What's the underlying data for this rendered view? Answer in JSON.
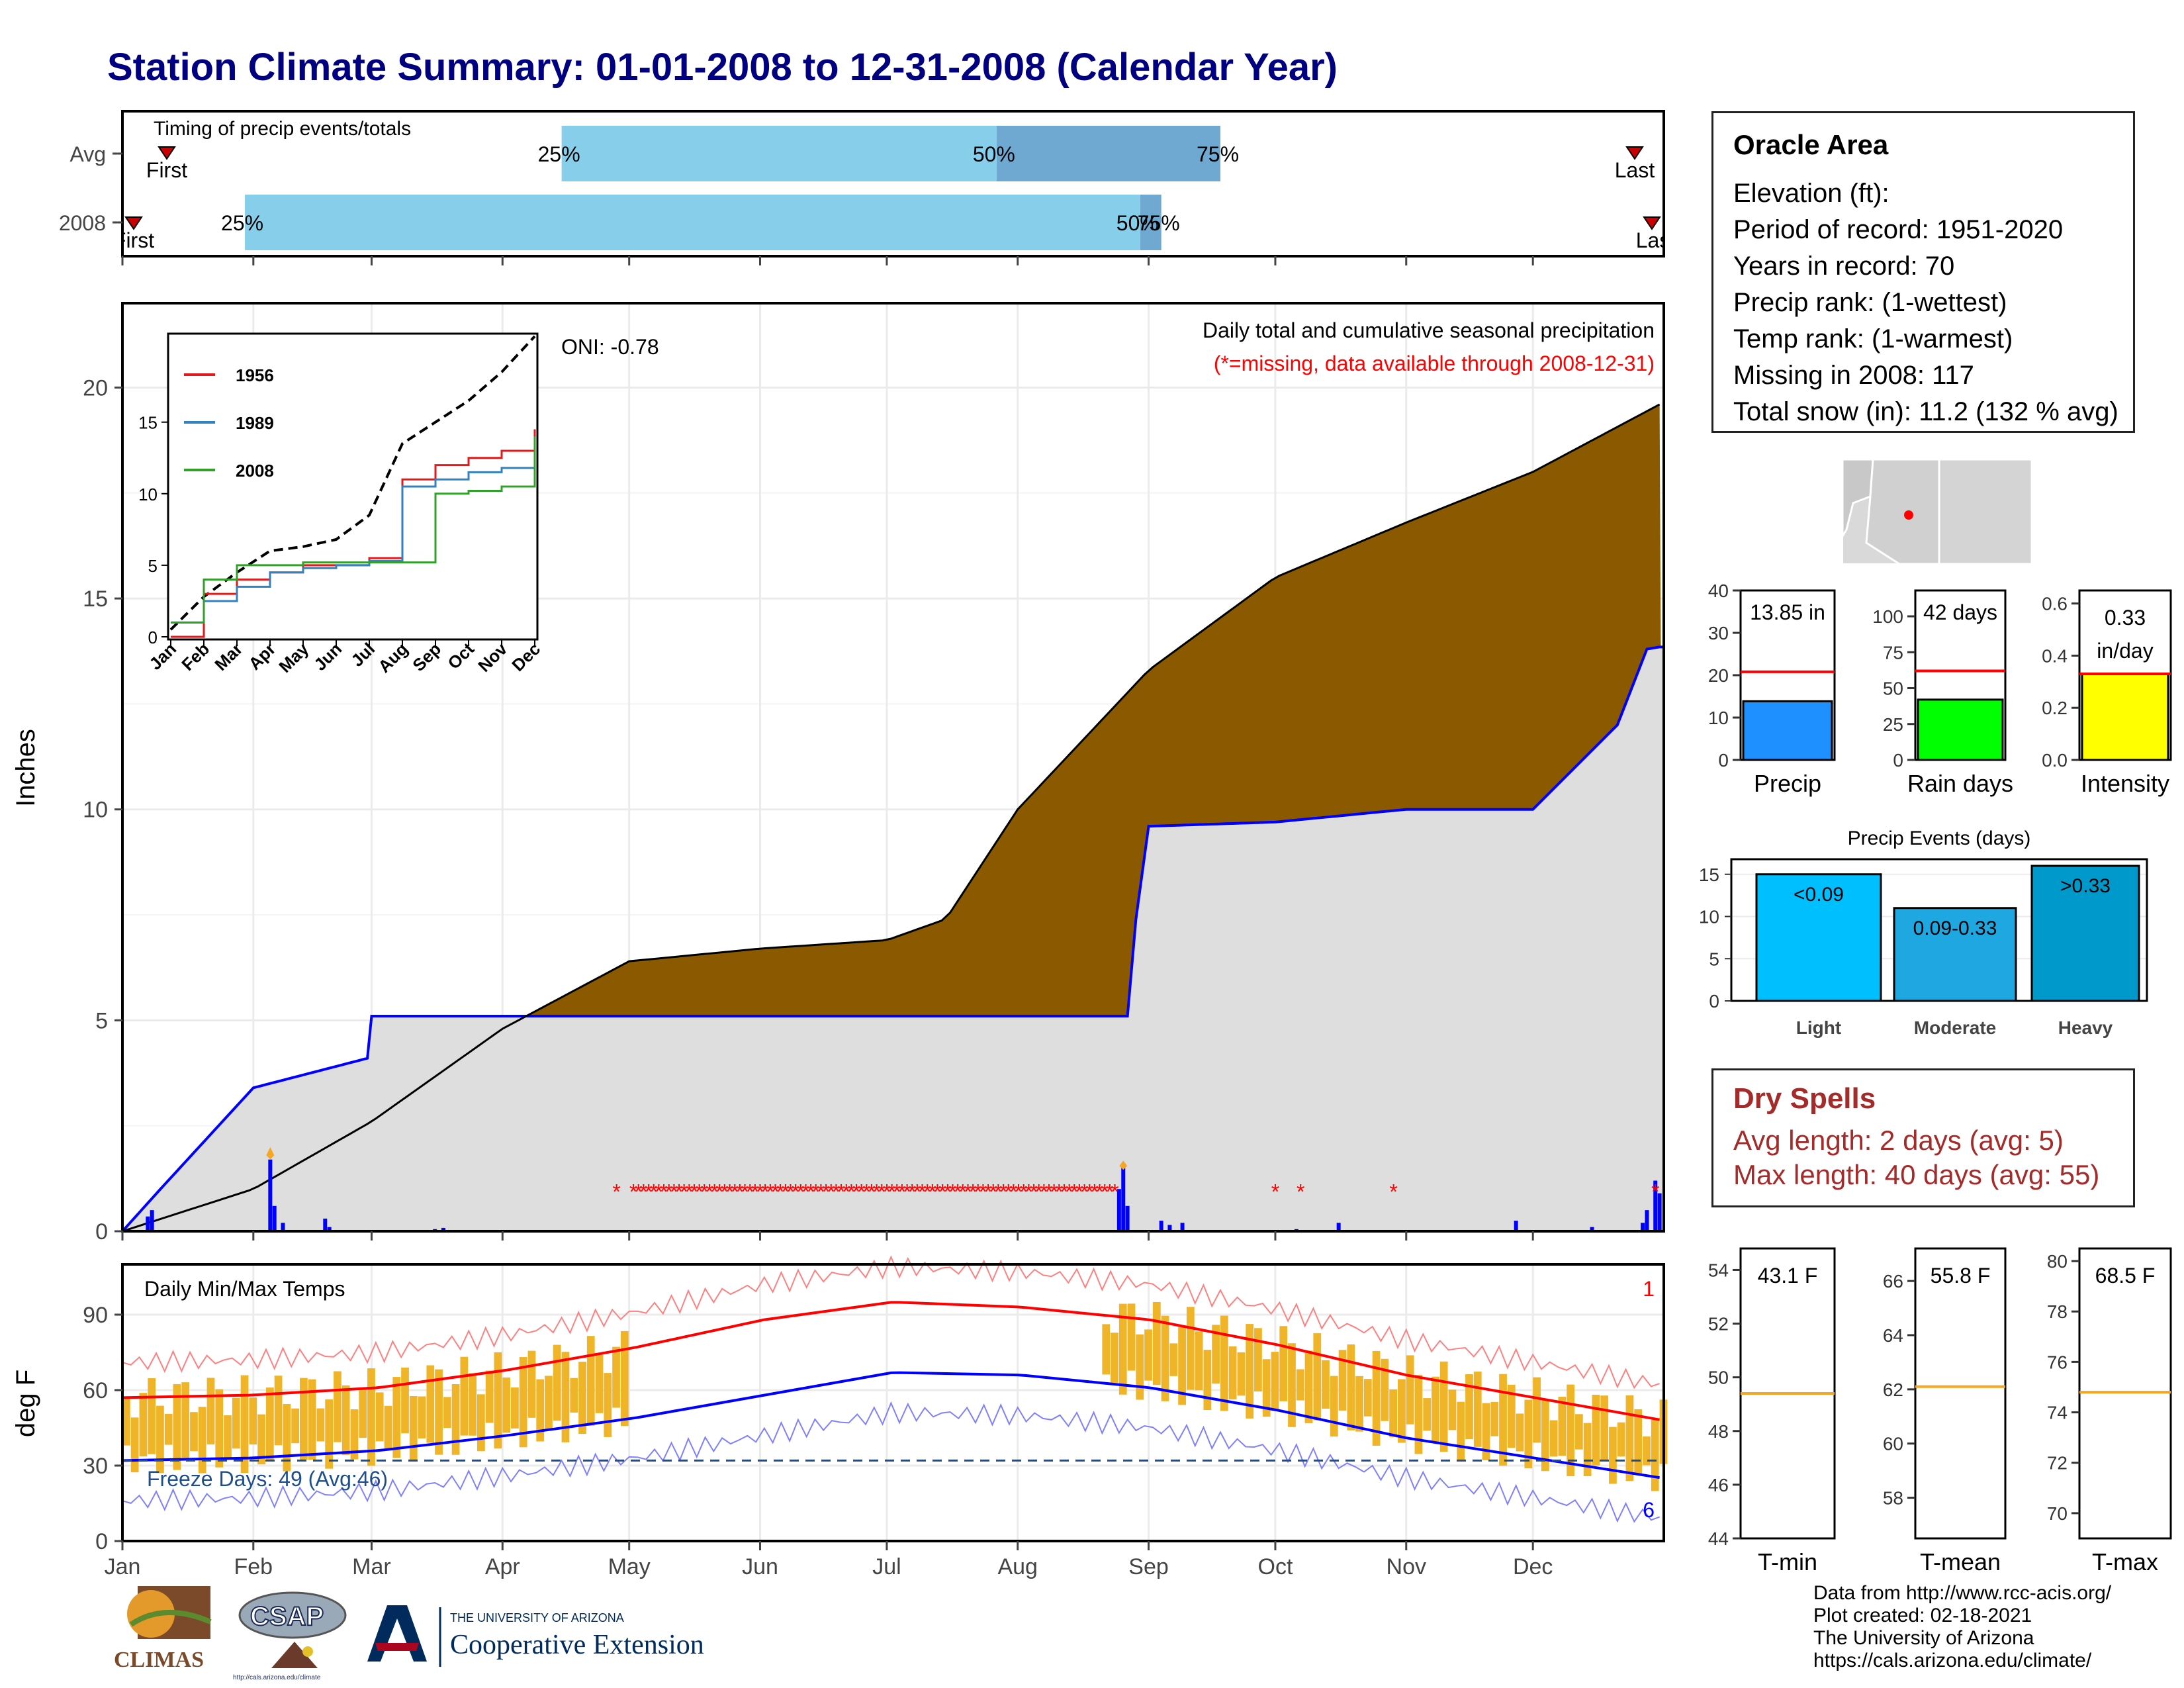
{
  "title": "Station Climate Summary: 01-01-2008 to 12-31-2008 (Calendar Year)",
  "colors": {
    "title": "#000080",
    "precip_area": "#8B5A00",
    "green_area": "#008000",
    "cumulative_line": "#0000ff",
    "missing": "#ff0000",
    "temp_bar": "#f0b429",
    "tmax_avg": "#ff0000",
    "tmin_avg": "#0000ff"
  },
  "timing": {
    "header": "Timing of precip events/totals",
    "rows": [
      {
        "label": "Avg",
        "p25": "25%",
        "p50": "50%",
        "p75": "75%",
        "first": "First",
        "last": "Last"
      },
      {
        "label": "2008",
        "p25": "25%",
        "p50": "50%",
        "p75": "75%",
        "first": "First",
        "last": "Last"
      }
    ]
  },
  "info": {
    "station": "Oracle Area",
    "lines": [
      "Elevation (ft):",
      "Period of record: 1951-2020",
      "Years in record: 70",
      "Precip rank:  (1-wettest)",
      "Temp rank:  (1-warmest)",
      "Missing in 2008: 117",
      "Total snow (in): 11.2 (132 % avg)"
    ]
  },
  "main": {
    "ylabel": "Inches",
    "oni": "ONI: -0.78",
    "legend_title": "Daily total and cumulative seasonal precipitation",
    "missing_note": "(*=missing, data available through 2008-12-31)",
    "y_ticks": [
      "0",
      "5",
      "10",
      "15",
      "20"
    ]
  },
  "inset": {
    "series": [
      "1956",
      "1989",
      "2008"
    ],
    "y_ticks": [
      "0",
      "5",
      "10",
      "15"
    ],
    "months": [
      "Jan",
      "Feb",
      "Mar",
      "Apr",
      "May",
      "Jun",
      "Jul",
      "Aug",
      "Sep",
      "Oct",
      "Nov",
      "Dec"
    ]
  },
  "temps": {
    "ylabel": "deg F",
    "header": "Daily Min/Max Temps",
    "freeze": "Freeze Days: 49 (Avg:46)",
    "count_top": "1",
    "count_bottom": "6",
    "y_ticks": [
      "0",
      "30",
      "60",
      "90"
    ]
  },
  "months": [
    "Jan",
    "Feb",
    "Mar",
    "Apr",
    "May",
    "Jun",
    "Jul",
    "Aug",
    "Sep",
    "Oct",
    "Nov",
    "Dec"
  ],
  "bars": {
    "precip": {
      "value_label": "13.85 in",
      "xlabel": "Precip",
      "ticks": [
        "0",
        "10",
        "20",
        "30",
        "40"
      ]
    },
    "raindays": {
      "value_label": "42 days",
      "xlabel": "Rain days",
      "ticks": [
        "0",
        "25",
        "50",
        "75",
        "100"
      ]
    },
    "intensity": {
      "value_label1": "0.33",
      "value_label2": "in/day",
      "xlabel": "Intensity",
      "ticks": [
        "0.0",
        "0.2",
        "0.4",
        "0.6"
      ]
    }
  },
  "events": {
    "title": "Precip Events (days)",
    "categories": [
      "Light",
      "Moderate",
      "Heavy"
    ],
    "bar_labels": [
      "<0.09",
      "0.09-0.33",
      ">0.33"
    ],
    "ticks": [
      "0",
      "5",
      "10",
      "15"
    ]
  },
  "dry": {
    "header": "Dry Spells",
    "avg": "Avg length: 2 days (avg: 5)",
    "max": "Max length: 40 days (avg: 55)"
  },
  "temp_boxes": [
    {
      "label": "43.1 F",
      "xlabel": "T-min",
      "ticks": [
        "44",
        "46",
        "48",
        "50",
        "52",
        "54"
      ]
    },
    {
      "label": "55.8 F",
      "xlabel": "T-mean",
      "ticks": [
        "58",
        "60",
        "62",
        "64",
        "66"
      ]
    },
    {
      "label": "68.5 F",
      "xlabel": "T-max",
      "ticks": [
        "70",
        "72",
        "74",
        "76",
        "78",
        "80"
      ]
    }
  ],
  "footer": [
    "Data from http://www.rcc-acis.org/",
    "Plot created: 02-18-2021",
    "The University of Arizona",
    "https://cals.arizona.edu/climate/"
  ],
  "logos": {
    "climas": "CLIMAS",
    "csap": "CSAP",
    "csap_url": "http://cals.arizona.edu/climate",
    "ua_small": "THE UNIVERSITY OF ARIZONA",
    "ua_big": "Cooperative Extension"
  },
  "chart_data": [
    {
      "type": "bar",
      "title": "Timing of precip events/totals",
      "categories": [
        "Avg",
        "2008"
      ],
      "series": [
        {
          "name": "25%",
          "values": [
            "Apr 15",
            "Jan 30"
          ]
        },
        {
          "name": "50%",
          "values": [
            "Jul 27",
            "Aug 30"
          ]
        },
        {
          "name": "75%",
          "values": [
            "Sep 18",
            "Sep 4"
          ]
        }
      ]
    },
    {
      "type": "area",
      "title": "Daily total and cumulative seasonal precipitation",
      "ylabel": "Inches",
      "ylim": [
        0,
        22
      ],
      "series": [
        {
          "x": [
            "Jan 1",
            "Feb 1",
            "Mar 1",
            "Apr 1",
            "May 1",
            "Jun 1",
            "Jul 1",
            "Jul 15",
            "Aug 1",
            "Sep 1",
            "Oct 1",
            "Nov 1",
            "Dec 1",
            "Dec 31"
          ],
          "values": [
            0.0,
            1.0,
            2.6,
            4.8,
            6.4,
            6.7,
            6.9,
            7.4,
            10.0,
            13.3,
            15.5,
            16.8,
            18.0,
            19.6
          ]
        },
        {
          "x": [
            "Jan 1",
            "Jan 10",
            "Feb 1",
            "Feb 28",
            "Mar 1",
            "Apr 1",
            "Aug 27",
            "Aug 29",
            "Sep 1",
            "Oct 1",
            "Nov 1",
            "Dec 1",
            "Dec 21",
            "Dec 28",
            "Dec 31"
          ],
          "values": [
            0.0,
            1.0,
            3.4,
            4.1,
            5.1,
            5.1,
            5.1,
            7.4,
            9.6,
            9.7,
            10.0,
            10.0,
            12.0,
            13.8,
            13.85
          ]
        }
      ]
    },
    {
      "type": "line",
      "xlim": [
        "Jan",
        "Dec"
      ],
      "ylim": [
        0,
        21
      ],
      "series": [
        {
          "x": [
            "Jan",
            "Feb",
            "Mar",
            "Apr",
            "May",
            "Jun",
            "Jul",
            "Aug",
            "Sep",
            "Oct",
            "Nov",
            "Dec"
          ],
          "values": [
            0.5,
            2.8,
            4.5,
            6.0,
            6.3,
            6.8,
            8.5,
            13.5,
            15.0,
            16.5,
            18.5,
            21.0
          ]
        },
        {
          "name": "1956",
          "x": [
            "Jan",
            "Feb",
            "Mar",
            "Apr",
            "May",
            "Jun",
            "Jul",
            "Aug",
            "Sep",
            "Oct",
            "Nov",
            "Dec"
          ],
          "values": [
            0.0,
            3.0,
            4.0,
            4.5,
            5.0,
            5.0,
            5.5,
            11.0,
            12.0,
            12.5,
            13.0,
            14.5
          ]
        },
        {
          "name": "1989",
          "x": [
            "Jan",
            "Feb",
            "Mar",
            "Apr",
            "May",
            "Jun",
            "Jul",
            "Aug",
            "Sep",
            "Oct",
            "Nov",
            "Dec"
          ],
          "values": [
            1.0,
            2.5,
            3.5,
            4.5,
            4.8,
            5.0,
            5.3,
            10.5,
            11.0,
            11.5,
            11.8,
            13.5
          ]
        },
        {
          "name": "2008",
          "x": [
            "Jan",
            "Feb",
            "Mar",
            "Apr",
            "May",
            "Jun",
            "Jul",
            "Aug",
            "Sep",
            "Oct",
            "Nov",
            "Dec"
          ],
          "values": [
            1.0,
            4.0,
            5.0,
            5.0,
            5.2,
            5.2,
            5.2,
            5.2,
            10.0,
            10.2,
            10.5,
            14.0
          ]
        }
      ]
    },
    {
      "type": "line",
      "title": "Daily Min/Max Temps",
      "ylabel": "deg F",
      "ylim": [
        0,
        110
      ],
      "series": [
        {
          "x": [
            "Jan",
            "Feb",
            "Mar",
            "Apr",
            "May",
            "Jun",
            "Jul",
            "Aug",
            "Sep",
            "Oct",
            "Nov",
            "Dec"
          ],
          "values": [
            57,
            58,
            61,
            68,
            77,
            88,
            95,
            93,
            88,
            78,
            66,
            57
          ]
        },
        {
          "x": [
            "Jan",
            "Feb",
            "Mar",
            "Apr",
            "May",
            "Jun",
            "Jul",
            "Aug",
            "Sep",
            "Oct",
            "Nov",
            "Dec"
          ],
          "values": [
            32,
            33,
            36,
            42,
            49,
            58,
            67,
            66,
            61,
            52,
            41,
            33
          ]
        }
      ]
    },
    {
      "type": "bar",
      "categories": [
        "Precip",
        "Rain days",
        "Intensity"
      ],
      "series": [
        {
          "values": [
            13.85,
            42,
            0.33
          ]
        },
        {
          "values": [
            20.8,
            62,
            0.33
          ]
        }
      ]
    },
    {
      "type": "bar",
      "title": "Precip Events (days)",
      "categories": [
        "Light",
        "Moderate",
        "Heavy"
      ],
      "values": [
        15,
        11,
        16
      ],
      "ylim": [
        0,
        16
      ]
    },
    {
      "type": "bar",
      "categories": [
        "T-min",
        "T-mean",
        "T-max"
      ],
      "series": [
        {
          "values": [
            43.1,
            55.8,
            68.5
          ]
        },
        {
          "values": [
            49.4,
            62.1,
            74.8
          ]
        }
      ]
    }
  ]
}
